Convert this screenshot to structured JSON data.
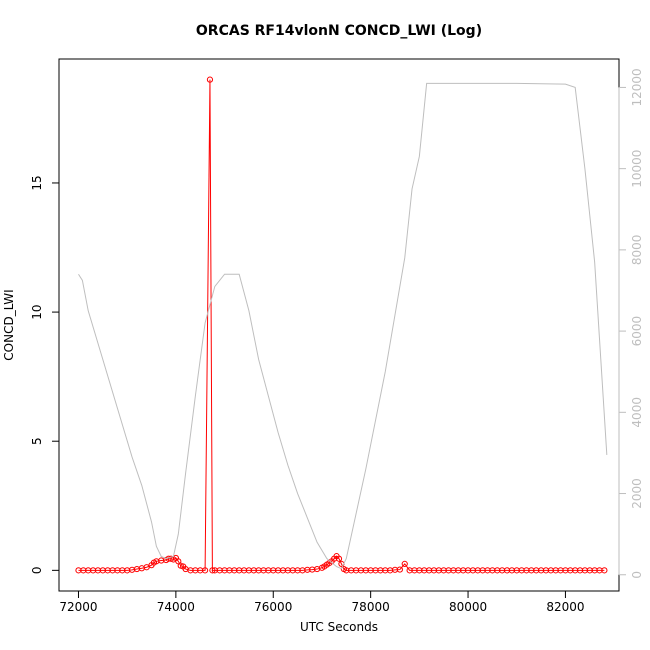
{
  "chart_data": {
    "type": "scatter",
    "title": "ORCAS RF14vlonN CONCD_LWI (Log)",
    "xlabel": "UTC Seconds",
    "ylabel": "CONCD_LWI",
    "xlim": [
      71600,
      83100
    ],
    "ylim": [
      -0.8,
      19.8
    ],
    "y2lim": [
      -400,
      12700
    ],
    "x_ticks": [
      72000,
      74000,
      76000,
      78000,
      80000,
      82000
    ],
    "y_ticks": [
      0,
      5,
      10,
      15
    ],
    "y2_ticks": [
      0,
      2000,
      4000,
      6000,
      8000,
      10000,
      12000
    ],
    "grid": false,
    "legend": "none",
    "colors": {
      "primary": "#ff0000",
      "secondary": "#bebebe",
      "axis": "#000000"
    },
    "series": [
      {
        "axis": "left",
        "style": "points-and-lines",
        "color": "#ff0000",
        "points": [
          [
            72000,
            0
          ],
          [
            72100,
            0
          ],
          [
            72200,
            0
          ],
          [
            72300,
            0
          ],
          [
            72400,
            0
          ],
          [
            72500,
            0
          ],
          [
            72600,
            0
          ],
          [
            72700,
            0
          ],
          [
            72800,
            0
          ],
          [
            72900,
            0
          ],
          [
            73000,
            0
          ],
          [
            73100,
            0.02
          ],
          [
            73200,
            0.05
          ],
          [
            73300,
            0.08
          ],
          [
            73400,
            0.12
          ],
          [
            73500,
            0.2
          ],
          [
            73550,
            0.3
          ],
          [
            73600,
            0.35
          ],
          [
            73700,
            0.38
          ],
          [
            73800,
            0.4
          ],
          [
            73850,
            0.45
          ],
          [
            73900,
            0.45
          ],
          [
            73950,
            0.42
          ],
          [
            74000,
            0.48
          ],
          [
            74050,
            0.35
          ],
          [
            74100,
            0.18
          ],
          [
            74150,
            0.15
          ],
          [
            74200,
            0.05
          ],
          [
            74300,
            0
          ],
          [
            74400,
            0
          ],
          [
            74500,
            0
          ],
          [
            74600,
            0
          ],
          [
            74700,
            19.0
          ],
          [
            74750,
            0
          ],
          [
            74800,
            0
          ],
          [
            74900,
            0
          ],
          [
            75000,
            0
          ],
          [
            75100,
            0
          ],
          [
            75200,
            0
          ],
          [
            75300,
            0
          ],
          [
            75400,
            0
          ],
          [
            75500,
            0
          ],
          [
            75600,
            0
          ],
          [
            75700,
            0
          ],
          [
            75800,
            0
          ],
          [
            75900,
            0
          ],
          [
            76000,
            0
          ],
          [
            76100,
            0
          ],
          [
            76200,
            0
          ],
          [
            76300,
            0
          ],
          [
            76400,
            0
          ],
          [
            76500,
            0
          ],
          [
            76600,
            0
          ],
          [
            76700,
            0.02
          ],
          [
            76800,
            0.03
          ],
          [
            76900,
            0.05
          ],
          [
            77000,
            0.1
          ],
          [
            77050,
            0.15
          ],
          [
            77100,
            0.22
          ],
          [
            77150,
            0.28
          ],
          [
            77200,
            0.35
          ],
          [
            77250,
            0.45
          ],
          [
            77300,
            0.55
          ],
          [
            77350,
            0.45
          ],
          [
            77400,
            0.25
          ],
          [
            77450,
            0.05
          ],
          [
            77500,
            0
          ],
          [
            77600,
            0
          ],
          [
            77700,
            0
          ],
          [
            77800,
            0
          ],
          [
            77900,
            0
          ],
          [
            78000,
            0
          ],
          [
            78100,
            0
          ],
          [
            78200,
            0
          ],
          [
            78300,
            0
          ],
          [
            78400,
            0
          ],
          [
            78500,
            0.02
          ],
          [
            78600,
            0.03
          ],
          [
            78700,
            0.25
          ],
          [
            78800,
            0
          ],
          [
            78900,
            0
          ],
          [
            79000,
            0
          ],
          [
            79100,
            0
          ],
          [
            79200,
            0
          ],
          [
            79300,
            0
          ],
          [
            79400,
            0
          ],
          [
            79500,
            0
          ],
          [
            79600,
            0
          ],
          [
            79700,
            0
          ],
          [
            79800,
            0
          ],
          [
            79900,
            0
          ],
          [
            80000,
            0
          ],
          [
            80100,
            0
          ],
          [
            80200,
            0
          ],
          [
            80300,
            0
          ],
          [
            80400,
            0
          ],
          [
            80500,
            0
          ],
          [
            80600,
            0
          ],
          [
            80700,
            0
          ],
          [
            80800,
            0
          ],
          [
            80900,
            0
          ],
          [
            81000,
            0
          ],
          [
            81100,
            0
          ],
          [
            81200,
            0
          ],
          [
            81300,
            0
          ],
          [
            81400,
            0
          ],
          [
            81500,
            0
          ],
          [
            81600,
            0
          ],
          [
            81700,
            0
          ],
          [
            81800,
            0
          ],
          [
            81900,
            0
          ],
          [
            82000,
            0
          ],
          [
            82100,
            0
          ],
          [
            82200,
            0
          ],
          [
            82300,
            0
          ],
          [
            82400,
            0
          ],
          [
            82500,
            0
          ],
          [
            82600,
            0
          ],
          [
            82700,
            0
          ],
          [
            82800,
            0
          ]
        ]
      },
      {
        "axis": "right",
        "style": "line",
        "color": "#bebebe",
        "points": [
          [
            72000,
            7400
          ],
          [
            72080,
            7250
          ],
          [
            72200,
            6500
          ],
          [
            72500,
            5300
          ],
          [
            72800,
            4100
          ],
          [
            73100,
            2900
          ],
          [
            73300,
            2200
          ],
          [
            73500,
            1300
          ],
          [
            73600,
            700
          ],
          [
            73700,
            450
          ],
          [
            73800,
            400
          ],
          [
            73950,
            450
          ],
          [
            74050,
            1000
          ],
          [
            74200,
            2500
          ],
          [
            74400,
            4400
          ],
          [
            74600,
            6200
          ],
          [
            74800,
            7100
          ],
          [
            75000,
            7400
          ],
          [
            75100,
            7400
          ],
          [
            75300,
            7400
          ],
          [
            75500,
            6500
          ],
          [
            75700,
            5300
          ],
          [
            75900,
            4400
          ],
          [
            76100,
            3500
          ],
          [
            76300,
            2700
          ],
          [
            76500,
            2000
          ],
          [
            76700,
            1400
          ],
          [
            76900,
            800
          ],
          [
            77100,
            400
          ],
          [
            77300,
            200
          ],
          [
            77400,
            150
          ],
          [
            77500,
            400
          ],
          [
            77700,
            1500
          ],
          [
            77900,
            2600
          ],
          [
            78100,
            3800
          ],
          [
            78300,
            5000
          ],
          [
            78500,
            6400
          ],
          [
            78700,
            7800
          ],
          [
            78850,
            9500
          ],
          [
            79000,
            10300
          ],
          [
            79100,
            11500
          ],
          [
            79150,
            12100
          ],
          [
            79300,
            12100
          ],
          [
            80000,
            12100
          ],
          [
            81000,
            12100
          ],
          [
            82000,
            12080
          ],
          [
            82200,
            12000
          ],
          [
            82400,
            10000
          ],
          [
            82600,
            7700
          ],
          [
            82850,
            2950
          ]
        ]
      }
    ]
  }
}
